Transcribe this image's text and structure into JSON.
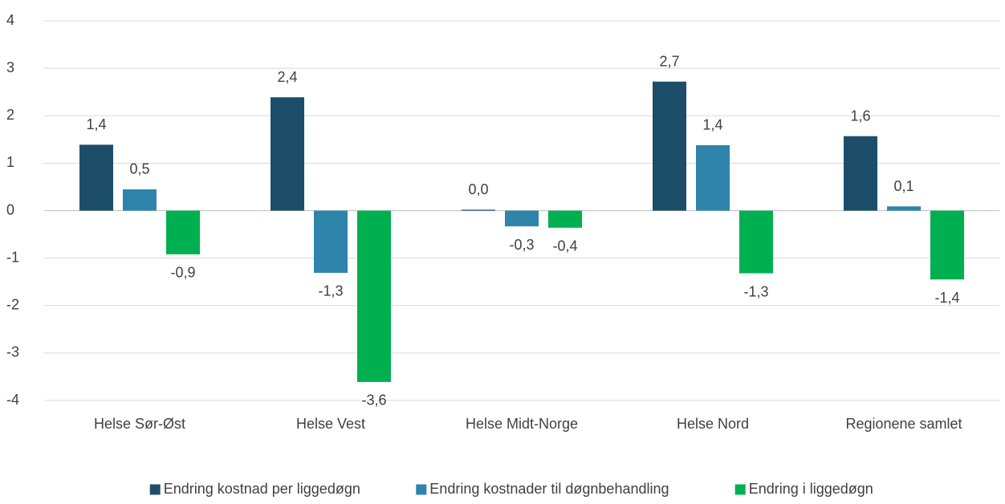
{
  "chart_data": {
    "type": "bar",
    "categories": [
      "Helse Sør-Øst",
      "Helse Vest",
      "Helse Midt-Norge",
      "Helse Nord",
      "Regionene samlet"
    ],
    "series": [
      {
        "name": "Endring kostnad per liggedøgn",
        "color": "#1d4e69",
        "values": [
          1.39,
          2.39,
          0.02,
          2.72,
          1.57
        ],
        "value_labels": [
          "1,4",
          "2,4",
          "0,0",
          "2,7",
          "1,6"
        ]
      },
      {
        "name": "Endring kostnader til døgnbehandling",
        "color": "#2e84ab",
        "values": [
          0.45,
          -1.31,
          -0.33,
          1.38,
          0.09
        ],
        "value_labels": [
          "0,5",
          "-1,3",
          "-0,3",
          "1,4",
          "0,1"
        ]
      },
      {
        "name": "Endring i liggedøgn",
        "color": "#00b050",
        "values": [
          -0.92,
          -3.61,
          -0.36,
          -1.32,
          -1.45
        ],
        "value_labels": [
          "-0,9",
          "-3,6",
          "-0,4",
          "-1,3",
          "-1,4"
        ]
      }
    ],
    "ylim": [
      -4,
      4
    ],
    "yticks": [
      -4,
      -3,
      -2,
      -1,
      0,
      1,
      2,
      3,
      4
    ],
    "grid": true,
    "legend": "bottom"
  }
}
